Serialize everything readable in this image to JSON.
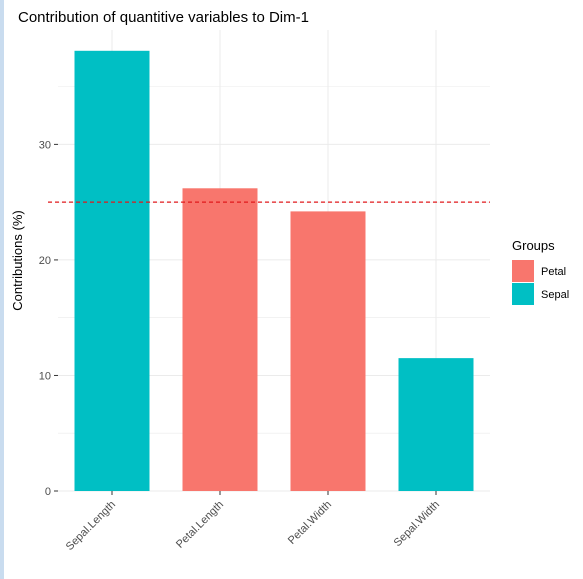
{
  "chart_data": {
    "type": "bar",
    "title": "Contribution of quantitive variables to Dim-1",
    "xlabel": "",
    "ylabel": "Contributions (%)",
    "categories": [
      "Sepal.Length",
      "Petal.Length",
      "Petal.Width",
      "Sepal.Width"
    ],
    "values": [
      38.1,
      26.2,
      24.2,
      11.5
    ],
    "groups": [
      "Sepal",
      "Petal",
      "Petal",
      "Sepal"
    ],
    "reference_line": 25,
    "ylim": [
      0,
      39.9
    ],
    "yticks": [
      0,
      10,
      20,
      30
    ],
    "grid": true,
    "legend": {
      "title": "Groups",
      "placement": "right",
      "items": [
        {
          "name": "Petal",
          "color": "#F8766D"
        },
        {
          "name": "Sepal",
          "color": "#00BFC4"
        }
      ]
    },
    "colors": {
      "Petal": "#F8766D",
      "Sepal": "#00BFC4",
      "reference_line": "#E0191C",
      "grid": "#ebebeb"
    }
  }
}
